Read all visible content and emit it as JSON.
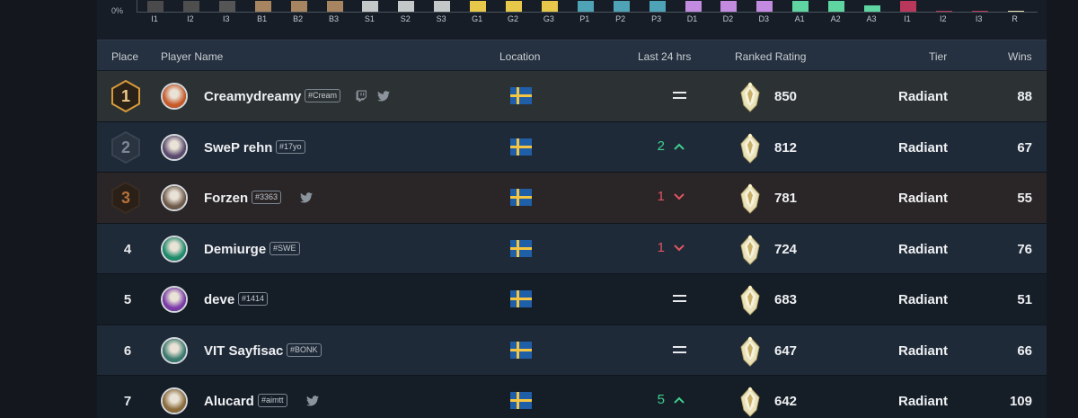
{
  "distribution": {
    "y_axis_label": "0%",
    "ranks": [
      {
        "label": "I1",
        "color": "#4a4a4a",
        "level": 0.9
      },
      {
        "label": "I2",
        "color": "#4e4e4e",
        "level": 0.9
      },
      {
        "label": "I3",
        "color": "#555555",
        "level": 0.9
      },
      {
        "label": "B1",
        "color": "#a88561",
        "level": 0.9
      },
      {
        "label": "B2",
        "color": "#a88561",
        "level": 0.9
      },
      {
        "label": "B3",
        "color": "#a88561",
        "level": 0.9
      },
      {
        "label": "S1",
        "color": "#c5c8c8",
        "level": 0.9
      },
      {
        "label": "S2",
        "color": "#c5c8c8",
        "level": 0.9
      },
      {
        "label": "S3",
        "color": "#c5c8c8",
        "level": 0.9
      },
      {
        "label": "G1",
        "color": "#e8c84a",
        "level": 0.9
      },
      {
        "label": "G2",
        "color": "#e8c84a",
        "level": 0.9
      },
      {
        "label": "G3",
        "color": "#e8c84a",
        "level": 0.9
      },
      {
        "label": "P1",
        "color": "#4fa3b7",
        "level": 0.9
      },
      {
        "label": "P2",
        "color": "#4fa3b7",
        "level": 0.9
      },
      {
        "label": "P3",
        "color": "#4fa3b7",
        "level": 0.9
      },
      {
        "label": "D1",
        "color": "#c38be0",
        "level": 0.9
      },
      {
        "label": "D2",
        "color": "#c38be0",
        "level": 0.9
      },
      {
        "label": "D3",
        "color": "#c38be0",
        "level": 0.9
      },
      {
        "label": "A1",
        "color": "#5fd6a1",
        "level": 0.9
      },
      {
        "label": "A2",
        "color": "#5fd6a1",
        "level": 0.9
      },
      {
        "label": "A3",
        "color": "#5fd6a1",
        "level": 0.5
      },
      {
        "label": "I1",
        "color": "#b8375a",
        "level": 0.9
      },
      {
        "label": "I2",
        "color": "#b8375a",
        "level": 0.1
      },
      {
        "label": "I3",
        "color": "#b8375a",
        "level": 0.1
      },
      {
        "label": "R",
        "color": "#e9e4b5",
        "level": 0.1
      }
    ]
  },
  "columns": {
    "place": "Place",
    "player_name": "Player Name",
    "location": "Location",
    "last24": "Last 24 hrs",
    "rating": "Ranked Rating",
    "tier": "Tier",
    "wins": "Wins"
  },
  "players": [
    {
      "place": "1",
      "name": "Creamydreamy",
      "tag": "#Cream",
      "twitch": true,
      "twitter": true,
      "country": "Sweden",
      "change": "",
      "trend": "same",
      "rating": "850",
      "tier": "Radiant",
      "wins": "88",
      "avatar": "#c85a2a"
    },
    {
      "place": "2",
      "name": "SweP rehn",
      "tag": "#17yo",
      "twitch": false,
      "twitter": false,
      "country": "Sweden",
      "change": "2",
      "trend": "up",
      "rating": "812",
      "tier": "Radiant",
      "wins": "67",
      "avatar": "#5a4a6e"
    },
    {
      "place": "3",
      "name": "Forzen",
      "tag": "#3363",
      "twitch": false,
      "twitter": true,
      "country": "Sweden",
      "change": "1",
      "trend": "down",
      "rating": "781",
      "tier": "Radiant",
      "wins": "55",
      "avatar": "#6e5a4a"
    },
    {
      "place": "4",
      "name": "Demiurge",
      "tag": "#SWE",
      "twitch": false,
      "twitter": false,
      "country": "Sweden",
      "change": "1",
      "trend": "down",
      "rating": "724",
      "tier": "Radiant",
      "wins": "76",
      "avatar": "#1e8a6a"
    },
    {
      "place": "5",
      "name": "deve",
      "tag": "#1414",
      "twitch": false,
      "twitter": false,
      "country": "Sweden",
      "change": "",
      "trend": "same",
      "rating": "683",
      "tier": "Radiant",
      "wins": "51",
      "avatar": "#7a3aa8"
    },
    {
      "place": "6",
      "name": "VIT Sayfisac",
      "tag": "#BONK",
      "twitch": false,
      "twitter": false,
      "country": "Sweden",
      "change": "",
      "trend": "same",
      "rating": "647",
      "tier": "Radiant",
      "wins": "66",
      "avatar": "#3a7a6e"
    },
    {
      "place": "7",
      "name": "Alucard",
      "tag": "#aimtt",
      "twitch": false,
      "twitter": true,
      "country": "Sweden",
      "change": "5",
      "trend": "up",
      "rating": "642",
      "tier": "Radiant",
      "wins": "109",
      "avatar": "#8a6a3a"
    }
  ],
  "colors": {
    "up": "#3ecf8e",
    "down": "#e05561",
    "gold": "#d79a3a",
    "silver": "#6c7684",
    "bronze": "#b5703a"
  },
  "icons": {
    "twitch": "twitch-icon",
    "twitter": "twitter-icon",
    "flag": "sweden-flag-icon",
    "rank": "radiant-rank-icon",
    "up": "chevron-up-icon",
    "down": "chevron-down-icon",
    "same": "equal-icon"
  }
}
